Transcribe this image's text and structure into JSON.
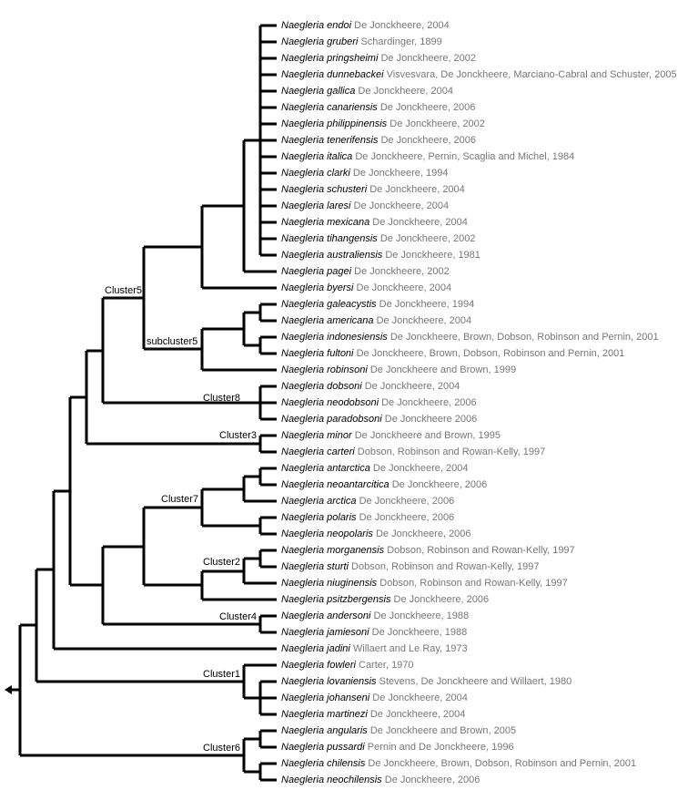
{
  "leaves": [
    {
      "species": "Naegleria endoi",
      "authority": "De Jonckheere, 2004"
    },
    {
      "species": "Naegleria gruberi",
      "authority": "Schardinger, 1899"
    },
    {
      "species": "Naegleria pringsheimi",
      "authority": "De Jonckheere, 2002"
    },
    {
      "species": "Naegleria dunnebackei",
      "authority": "Visvesvara, De Jonckheere, Marciano-Cabral and Schuster, 2005"
    },
    {
      "species": "Naegleria gallica",
      "authority": "De Jonckheere, 2004"
    },
    {
      "species": "Naegleria canariensis",
      "authority": "De Jonckheere, 2006"
    },
    {
      "species": "Naegleria philippinensis",
      "authority": "De Jonckheere, 2002"
    },
    {
      "species": "Naegleria tenerifensis",
      "authority": "De Jonckheere, 2006"
    },
    {
      "species": "Naegleria italica",
      "authority": "De Jonckheere, Pernin, Scaglia and Michel,  1984"
    },
    {
      "species": "Naegleria clarki",
      "authority": "De Jonckheere, 1994"
    },
    {
      "species": "Naegleria schusteri",
      "authority": "De Jonckheere, 2004"
    },
    {
      "species": "Naegleria laresi",
      "authority": "De Jonckheere, 2004"
    },
    {
      "species": "Naegleria mexicana",
      "authority": "De Jonckheere, 2004"
    },
    {
      "species": "Naegleria tihangensis",
      "authority": "De Jonckheere, 2002"
    },
    {
      "species": "Naegleria australiensis",
      "authority": "De Jonckheere,  1981"
    },
    {
      "species": "Naegleria pagei",
      "authority": "De Jonckheere, 2002"
    },
    {
      "species": "Naegleria byersi",
      "authority": "De Jonckheere, 2004"
    },
    {
      "species": "Naegleria galeacystis",
      "authority": "De Jonckheere, 1994"
    },
    {
      "species": "Naegleria americana",
      "authority": "De Jonckheere, 2004"
    },
    {
      "species": "Naegleria indonesiensis",
      "authority": "De Jonckheere, Brown, Dobson, Robinson and Pernin,  2001"
    },
    {
      "species": "Naegleria fultoni",
      "authority": "De Jonckheere, Brown, Dobson, Robinson and Pernin,  2001"
    },
    {
      "species": "Naegleria robinsoni",
      "authority": "De Jonckheere and Brown,  1999"
    },
    {
      "species": "Naegleria dobsoni",
      "authority": "De Jonckheere, 2004"
    },
    {
      "species": "Naegleria neodobsoni",
      "authority": "De Jonckheere, 2006"
    },
    {
      "species": "Naegleria paradobsoni",
      "authority": "De Jonckheere 2006"
    },
    {
      "species": "Naegleria minor",
      "authority": "De Jonckheere and Brown,  1995"
    },
    {
      "species": "Naegleria carteri",
      "authority": "Dobson, Robinson and Rowan-Kelly, 1997"
    },
    {
      "species": "Naegleria antarctica",
      "authority": "De Jonckheere, 2004"
    },
    {
      "species": "Naegleria neoantarcitica",
      "authority": "De Jonckheere, 2006"
    },
    {
      "species": "Naegleria arctica",
      "authority": "De Jonckheere, 2006"
    },
    {
      "species": "Naegleria polaris",
      "authority": "De Jonckheere, 2006"
    },
    {
      "species": "Naegleria neopolaris",
      "authority": "De Jonckheere, 2006"
    },
    {
      "species": "Naegleria morganensis",
      "authority": "Dobson, Robinson and Rowan-Kelly, 1997"
    },
    {
      "species": "Naegleria sturti",
      "authority": "Dobson, Robinson and Rowan-Kelly, 1997"
    },
    {
      "species": "Naegleria niuginensis",
      "authority": "Dobson, Robinson and Rowan-Kelly, 1997"
    },
    {
      "species": "Naegleria psitzbergensis",
      "authority": "De Jonckheere, 2006"
    },
    {
      "species": "Naegleria andersoni",
      "authority": "De Jonckheere, 1988"
    },
    {
      "species": "Naegleria jamiesoni",
      "authority": "De Jonckheere, 1988"
    },
    {
      "species": "Naegleria jadini",
      "authority": "Willaert and Le Ray, 1973"
    },
    {
      "species": "Naegleria fowleri",
      "authority": "Carter, 1970"
    },
    {
      "species": "Naegleria lovaniensis",
      "authority": "Stevens, De Jonckheere and Willaert,  1980"
    },
    {
      "species": "Naegleria johanseni",
      "authority": "De Jonckheere, 2004"
    },
    {
      "species": "Naegleria martinezi",
      "authority": "De Jonckheere, 2004"
    },
    {
      "species": "Naegleria angularis",
      "authority": "De Jonckheere and Brown, 2005"
    },
    {
      "species": "Naegleria pussardi",
      "authority": "Pernin and De Jonckheere,  1996"
    },
    {
      "species": "Naegleria chilensis",
      "authority": "De Jonckheere, Brown, Dobson, Robinson and Pernin,  2001"
    },
    {
      "species": "Naegleria neochilensis",
      "authority": "De Jonckheere, 2006"
    }
  ],
  "clusters": [
    "Cluster5",
    "subcluster5",
    "Cluster8",
    "Cluster3",
    "Cluster7",
    "Cluster2",
    "Cluster4",
    "Cluster1",
    "Cluster6"
  ]
}
